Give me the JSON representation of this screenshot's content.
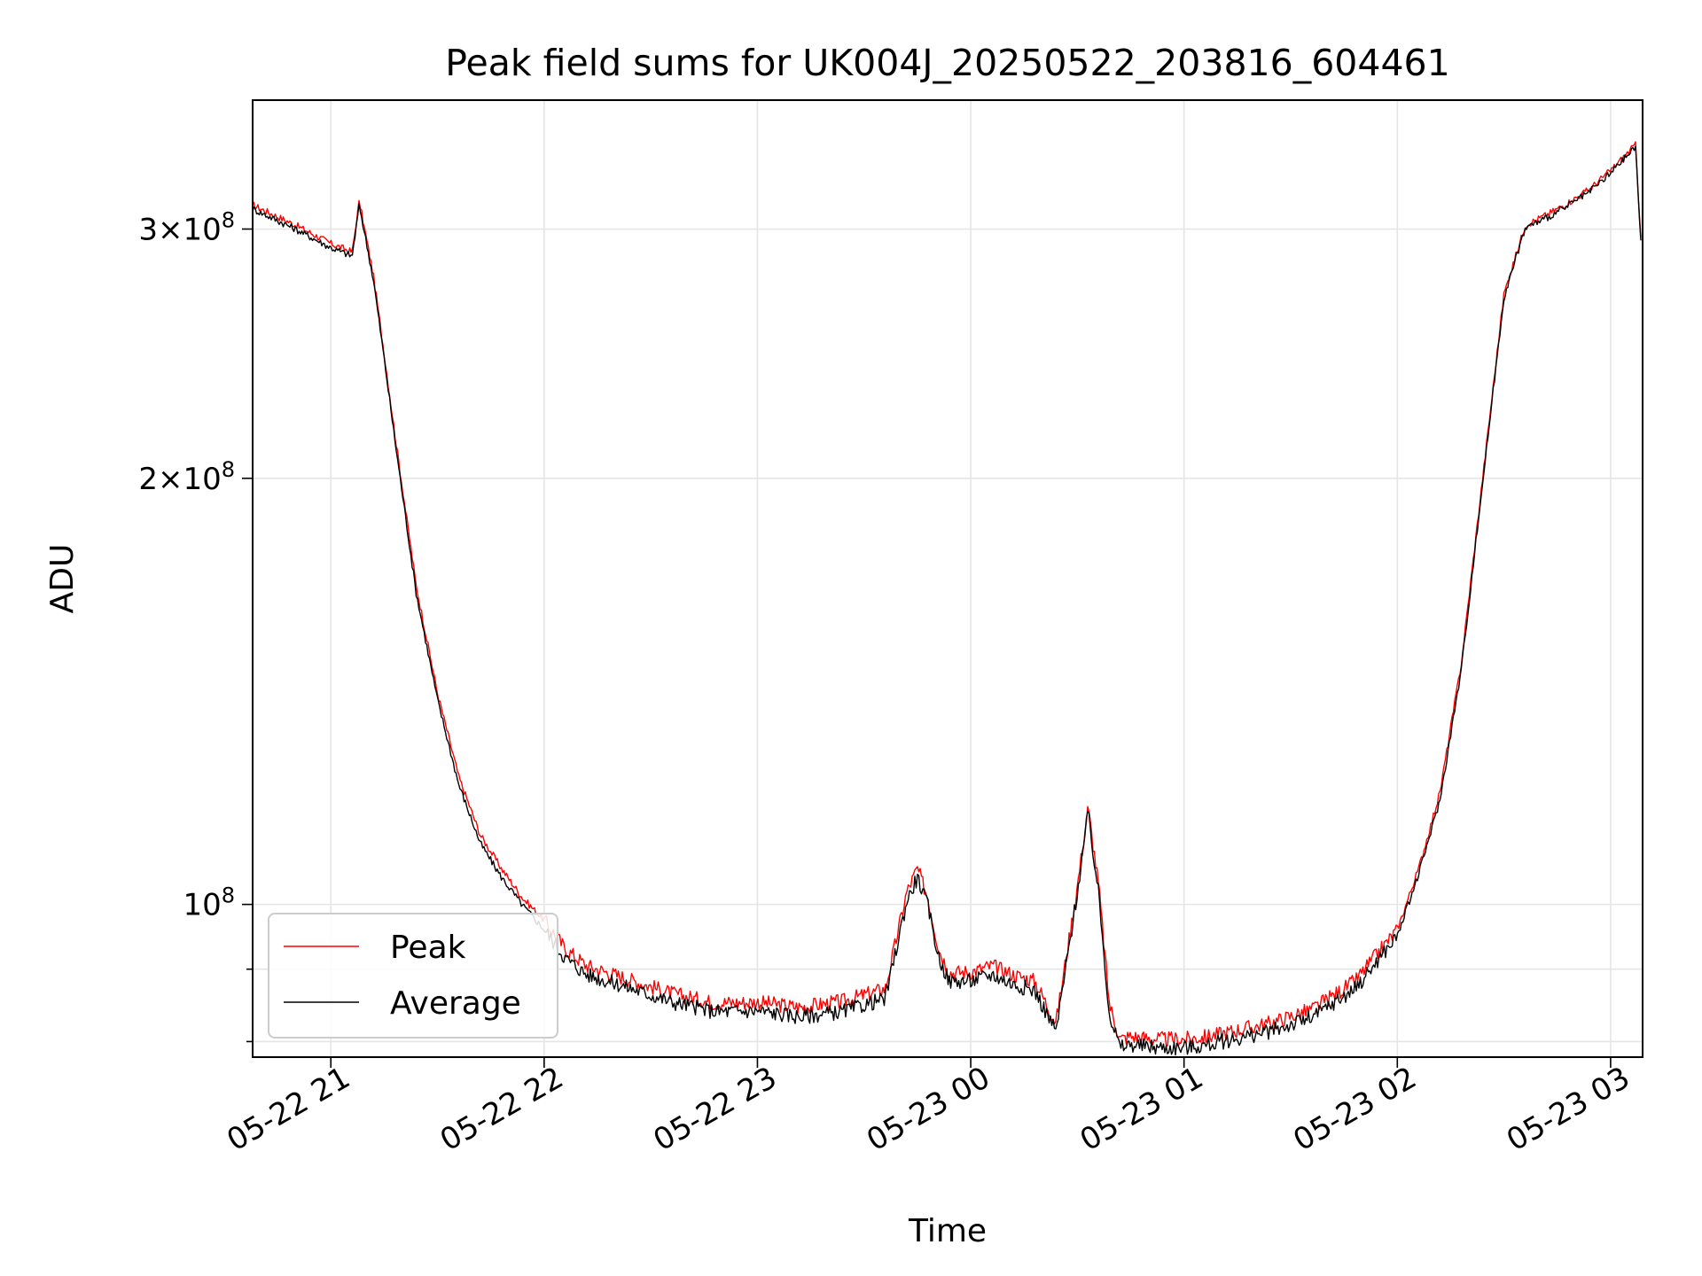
{
  "chart_data": {
    "type": "line",
    "title": "Peak field sums for UK004J_20250522_203816_604461",
    "xlabel": "Time",
    "ylabel": "ADU",
    "x_ticks": [
      {
        "label": "05-22 21",
        "hours": 21.0
      },
      {
        "label": "05-22 22",
        "hours": 22.0
      },
      {
        "label": "05-22 23",
        "hours": 23.0
      },
      {
        "label": "05-23 00",
        "hours": 24.0
      },
      {
        "label": "05-23 01",
        "hours": 25.0
      },
      {
        "label": "05-23 02",
        "hours": 26.0
      },
      {
        "label": "05-23 03",
        "hours": 27.0
      }
    ],
    "xlim": [
      "2025-05-22 20:38",
      "2025-05-23 03:09"
    ],
    "y_scale": "log",
    "ylim": [
      78000000,
      370000000
    ],
    "y_ticks": [
      {
        "base": "10",
        "exp": "8",
        "mantissa": "",
        "value": 100000000
      },
      {
        "base": "10",
        "exp": "8",
        "mantissa": "2",
        "value": 200000000
      },
      {
        "base": "10",
        "exp": "8",
        "mantissa": "3",
        "value": 300000000
      }
    ],
    "y_minor_ticks": [
      80000000,
      90000000
    ],
    "grid": true,
    "legend_position": "lower-left",
    "x": [
      "05-22 20:38",
      "05-22 20:50",
      "05-22 21:00",
      "05-22 21:06",
      "05-22 21:08",
      "05-22 21:12",
      "05-22 21:15",
      "05-22 21:18",
      "05-22 21:21",
      "05-22 21:24",
      "05-22 21:30",
      "05-22 21:36",
      "05-22 21:42",
      "05-22 21:48",
      "05-22 21:54",
      "05-22 22:00",
      "05-22 22:06",
      "05-22 22:12",
      "05-22 22:24",
      "05-22 22:36",
      "05-22 22:48",
      "05-22 23:00",
      "05-22 23:12",
      "05-22 23:24",
      "05-22 23:36",
      "05-22 23:42",
      "05-22 23:45",
      "05-22 23:48",
      "05-22 23:51",
      "05-22 23:54",
      "05-22 24:00",
      "05-23 00:06",
      "05-23 00:12",
      "05-23 00:18",
      "05-23 00:24",
      "05-23 00:30",
      "05-23 00:33",
      "05-23 00:36",
      "05-23 00:39",
      "05-23 00:42",
      "05-23 00:45",
      "05-23 00:48",
      "05-23 00:54",
      "05-23 01:00",
      "05-23 01:06",
      "05-23 01:12",
      "05-23 01:24",
      "05-23 01:36",
      "05-23 01:48",
      "05-23 02:00",
      "05-23 02:06",
      "05-23 02:12",
      "05-23 02:18",
      "05-23 02:24",
      "05-23 02:30",
      "05-23 02:36",
      "05-23 02:42",
      "05-23 02:48",
      "05-23 02:54",
      "05-23 03:00",
      "05-23 03:07",
      "05-23 03:08.5"
    ],
    "series": [
      {
        "name": "Peak",
        "color": "#ff0000",
        "values": [
          312000000,
          302000000,
          293000000,
          289000000,
          314000000,
          278000000,
          245000000,
          215000000,
          190000000,
          168000000,
          141000000,
          123000000,
          112000000,
          106000000,
          101000000,
          97500000,
          93000000,
          90500000,
          88500000,
          86500000,
          85200000,
          85300000,
          84600000,
          85400000,
          87200000,
          102000000,
          106000000,
          101000000,
          93000000,
          89500000,
          89600000,
          90500000,
          89200000,
          88300000,
          82500000,
          103000000,
          117000000,
          103000000,
          85000000,
          80300000,
          80700000,
          80500000,
          80300000,
          80300000,
          80600000,
          81200000,
          82400000,
          84300000,
          88200000,
          96000000,
          106000000,
          120000000,
          148000000,
          200000000,
          270000000,
          302000000,
          307000000,
          313000000,
          320000000,
          330000000,
          344000000,
          296000000
        ]
      },
      {
        "name": "Average",
        "color": "#000000",
        "values": [
          310000000,
          300000000,
          291000000,
          287000000,
          312000000,
          276000000,
          243000000,
          213000000,
          188000000,
          166000000,
          139500000,
          121500000,
          110500000,
          104500000,
          99800000,
          96000000,
          91600000,
          89200000,
          87300000,
          85300000,
          84000000,
          84100000,
          83300000,
          84000000,
          85800000,
          100500000,
          104500000,
          99600000,
          91700000,
          88200000,
          88300000,
          89200000,
          87800000,
          86900000,
          81300000,
          102000000,
          116000000,
          101500000,
          83700000,
          79200000,
          79600000,
          79400000,
          79200000,
          79200000,
          79500000,
          80100000,
          81300000,
          83200000,
          87100000,
          95000000,
          105000000,
          118500000,
          146500000,
          198500000,
          268500000,
          300500000,
          305500000,
          311500000,
          318500000,
          328500000,
          343000000,
          294500000
        ]
      }
    ]
  }
}
